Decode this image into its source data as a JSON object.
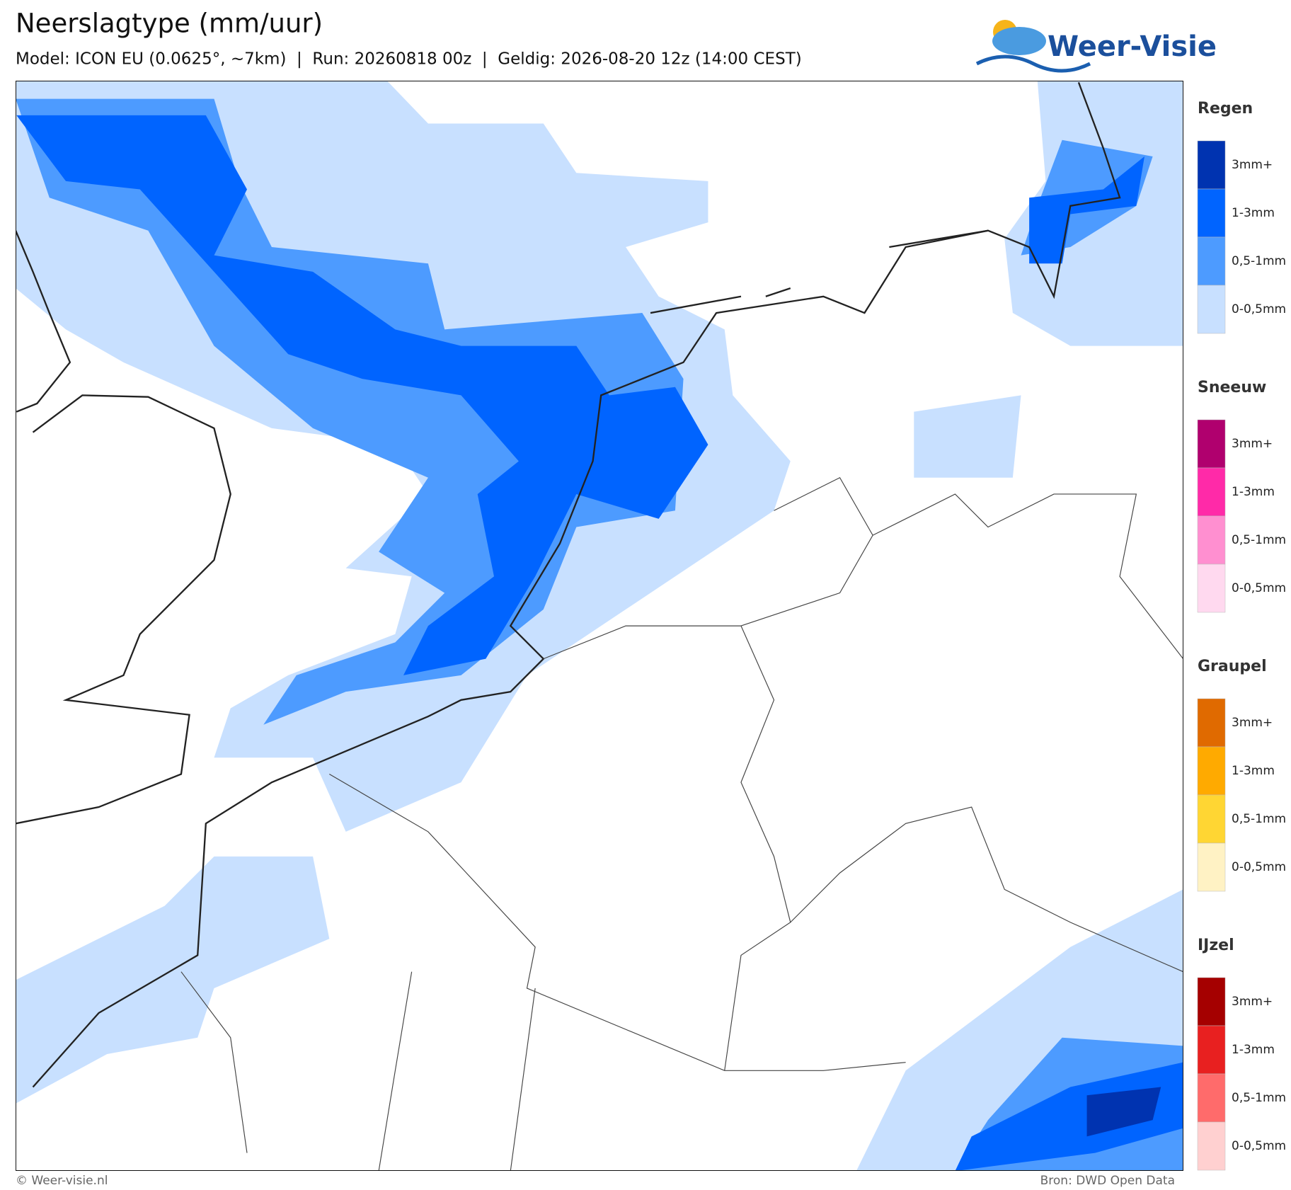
{
  "header": {
    "title": "Neerslagtype (mm/uur)",
    "subtitle": "Model: ICON EU (0.0625°, ~7km)  |  Run: 20260818 00z  |  Geldig: 2026-08-20 12z (14:00 CEST)",
    "logo": "Weer-Visie"
  },
  "legend": [
    {
      "title": "Regen",
      "items": [
        {
          "label": "3mm+",
          "color": "#0033b0"
        },
        {
          "label": "1-3mm",
          "color": "#0064ff"
        },
        {
          "label": "0,5-1mm",
          "color": "#4d9bff"
        },
        {
          "label": "0-0,5mm",
          "color": "#c8e0ff"
        }
      ]
    },
    {
      "title": "Sneeuw",
      "items": [
        {
          "label": "3mm+",
          "color": "#b0006e"
        },
        {
          "label": "1-3mm",
          "color": "#ff2aa8"
        },
        {
          "label": "0,5-1mm",
          "color": "#ff8fd0"
        },
        {
          "label": "0-0,5mm",
          "color": "#ffd9ef"
        }
      ]
    },
    {
      "title": "Graupel",
      "items": [
        {
          "label": "3mm+",
          "color": "#e06a00"
        },
        {
          "label": "1-3mm",
          "color": "#ffaa00"
        },
        {
          "label": "0,5-1mm",
          "color": "#ffd633"
        },
        {
          "label": "0-0,5mm",
          "color": "#fff2c4"
        }
      ]
    },
    {
      "title": "IJzel",
      "items": [
        {
          "label": "3mm+",
          "color": "#a50000"
        },
        {
          "label": "1-3mm",
          "color": "#e82020"
        },
        {
          "label": "0,5-1mm",
          "color": "#ff6b6b"
        },
        {
          "label": "0-0,5mm",
          "color": "#ffd0d0"
        }
      ]
    }
  ],
  "footer": {
    "left": "© Weer-visie.nl",
    "right": "Bron: DWD Open Data"
  }
}
